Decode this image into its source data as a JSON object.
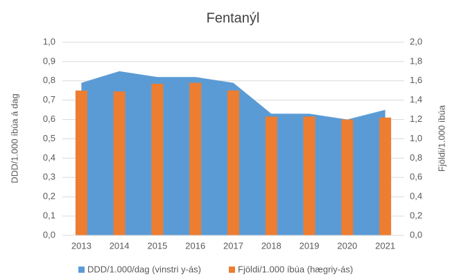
{
  "chart_data": {
    "type": "combo",
    "title": "Fentanýl",
    "y_label": "DDD/1.000 íbúa á dag",
    "y2_label": "Fjöldi/1.000 íbúa",
    "categories": [
      "2013",
      "2014",
      "2015",
      "2016",
      "2017",
      "2018",
      "2019",
      "2020",
      "2021"
    ],
    "series": [
      {
        "name": "DDD/1.000/dag (vinstri y-ás)",
        "type": "area",
        "color": "#5b9bd5",
        "values": [
          0.79,
          0.85,
          0.82,
          0.82,
          0.79,
          0.63,
          0.63,
          0.6,
          0.65
        ]
      },
      {
        "name": "Fjöldi/1.000 íbúa (hægriy-ás)",
        "type": "bar",
        "color": "#ed7d31",
        "axis": "y2",
        "values": [
          1.5,
          1.49,
          1.57,
          1.58,
          1.5,
          1.23,
          1.23,
          1.2,
          1.22
        ]
      }
    ],
    "ylim": [
      0,
      1
    ],
    "yticks": [
      {
        "value": 0,
        "label": "0,0"
      },
      {
        "value": 0.1,
        "label": "0,1"
      },
      {
        "value": 0.2,
        "label": "0,2"
      },
      {
        "value": 0.3,
        "label": "0,3"
      },
      {
        "value": 0.4,
        "label": "0,4"
      },
      {
        "value": 0.5,
        "label": "0,5"
      },
      {
        "value": 0.6,
        "label": "0,6"
      },
      {
        "value": 0.7,
        "label": "0,7"
      },
      {
        "value": 0.8,
        "label": "0,8"
      },
      {
        "value": 0.9,
        "label": "0,9"
      },
      {
        "value": 1,
        "label": "1,0"
      }
    ],
    "y2lim": [
      0,
      2
    ],
    "y2ticks": [
      {
        "value": 0,
        "label": "0,0"
      },
      {
        "value": 0.2,
        "label": "0,2"
      },
      {
        "value": 0.4,
        "label": "0,4"
      },
      {
        "value": 0.6,
        "label": "0,6"
      },
      {
        "value": 0.8,
        "label": "0,8"
      },
      {
        "value": 1,
        "label": "1,0"
      },
      {
        "value": 1.2,
        "label": "1,2"
      },
      {
        "value": 1.4,
        "label": "1,4"
      },
      {
        "value": 1.6,
        "label": "1,6"
      },
      {
        "value": 1.8,
        "label": "1,8"
      },
      {
        "value": 2,
        "label": "2,0"
      }
    ],
    "grid": true,
    "legend": "bottom"
  }
}
